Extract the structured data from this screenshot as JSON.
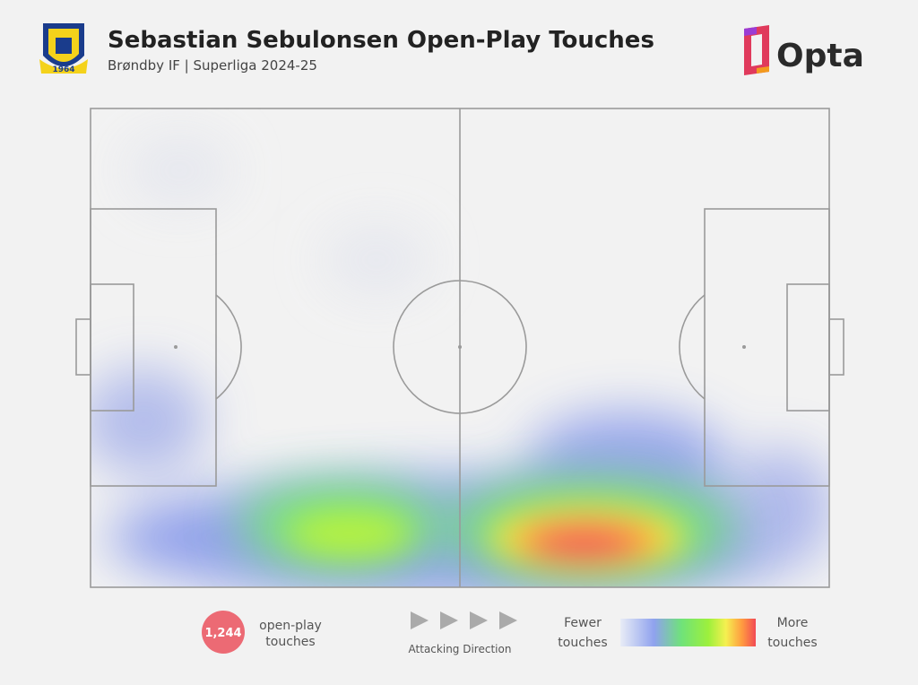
{
  "header": {
    "title": "Sebastian Sebulonsen Open-Play Touches",
    "subtitle": "Brøndby IF | Superliga 2024-25",
    "crest_year": "1964",
    "brand": "Opta"
  },
  "stat": {
    "value": "1,244",
    "label": [
      "open-play",
      "touches"
    ]
  },
  "direction": {
    "label": "Attacking Direction"
  },
  "legend": {
    "low": [
      "Fewer",
      "touches"
    ],
    "high": [
      "More",
      "touches"
    ]
  }
}
